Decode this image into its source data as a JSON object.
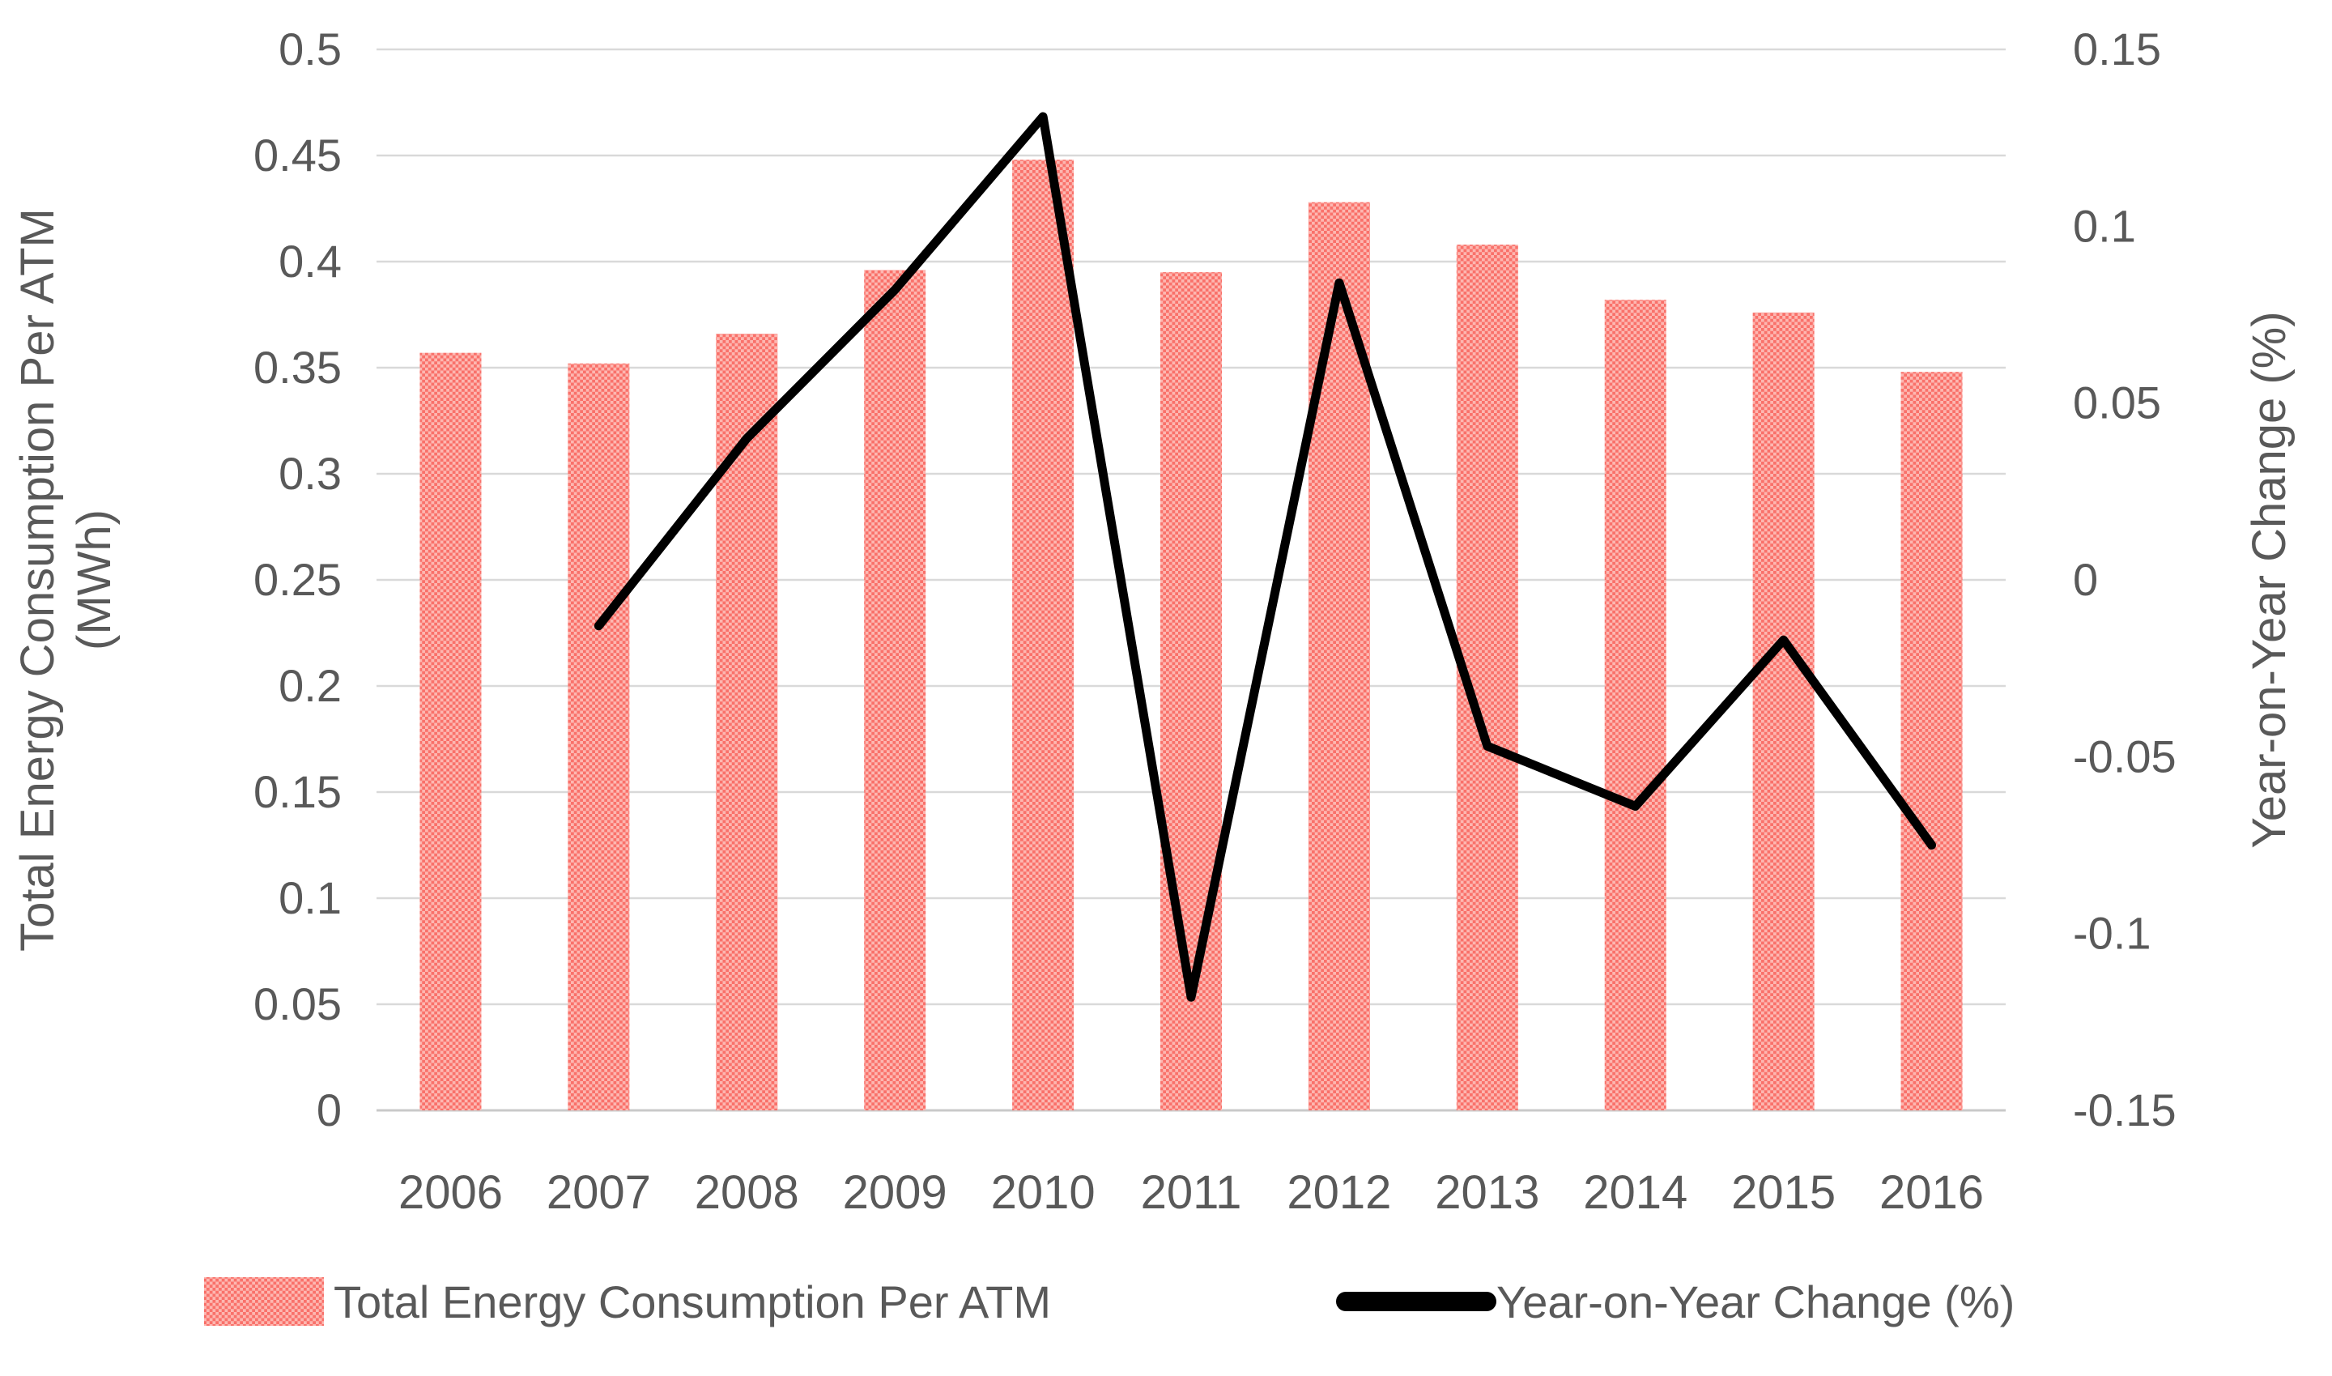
{
  "chart_data": {
    "type": "combo-bar-line",
    "categories": [
      "2006",
      "2007",
      "2008",
      "2009",
      "2010",
      "2011",
      "2012",
      "2013",
      "2014",
      "2015",
      "2016"
    ],
    "series": [
      {
        "name": "Total Energy Consumption Per ATM",
        "type": "bar",
        "axis": "left",
        "values": [
          0.357,
          0.352,
          0.366,
          0.396,
          0.448,
          0.395,
          0.428,
          0.408,
          0.382,
          0.376,
          0.348
        ]
      },
      {
        "name": "Year-on-Year Change (%)",
        "type": "line",
        "axis": "right",
        "values": [
          null,
          -0.013,
          0.04,
          0.082,
          0.131,
          -0.118,
          0.084,
          -0.047,
          -0.064,
          -0.017,
          -0.075
        ]
      }
    ],
    "left_axis": {
      "title_line1": "Total Energy Consumption Per ATM",
      "title_line2": "(MWh)",
      "min": 0,
      "max": 0.5,
      "tick_step": 0.05,
      "ticks": [
        "0",
        "0.05",
        "0.1",
        "0.15",
        "0.2",
        "0.25",
        "0.3",
        "0.35",
        "0.4",
        "0.45",
        "0.5"
      ]
    },
    "right_axis": {
      "title": "Year-on-Year Change (%)",
      "min": -0.15,
      "max": 0.15,
      "tick_step": 0.05,
      "ticks": [
        "0.15",
        "0.1",
        "0.05",
        "0",
        "-0.05",
        "-0.1",
        "-0.15"
      ]
    },
    "legend": [
      {
        "label": "Total Energy Consumption Per ATM",
        "marker": "patterned-bar-swatch"
      },
      {
        "label": "Year-on-Year Change (%)",
        "marker": "thick-black-line"
      }
    ],
    "layout_hints": {
      "gridlines": "horizontal-only",
      "legend_position": "bottom"
    },
    "colors": {
      "bar_pattern_dark": "#F9716A",
      "bar_pattern_light": "#FDB7B1",
      "line": "#000000",
      "gridline": "#D9D9D9",
      "axis_line": "#C9C9C9",
      "text": "#595959",
      "background": "#FFFFFF"
    }
  }
}
